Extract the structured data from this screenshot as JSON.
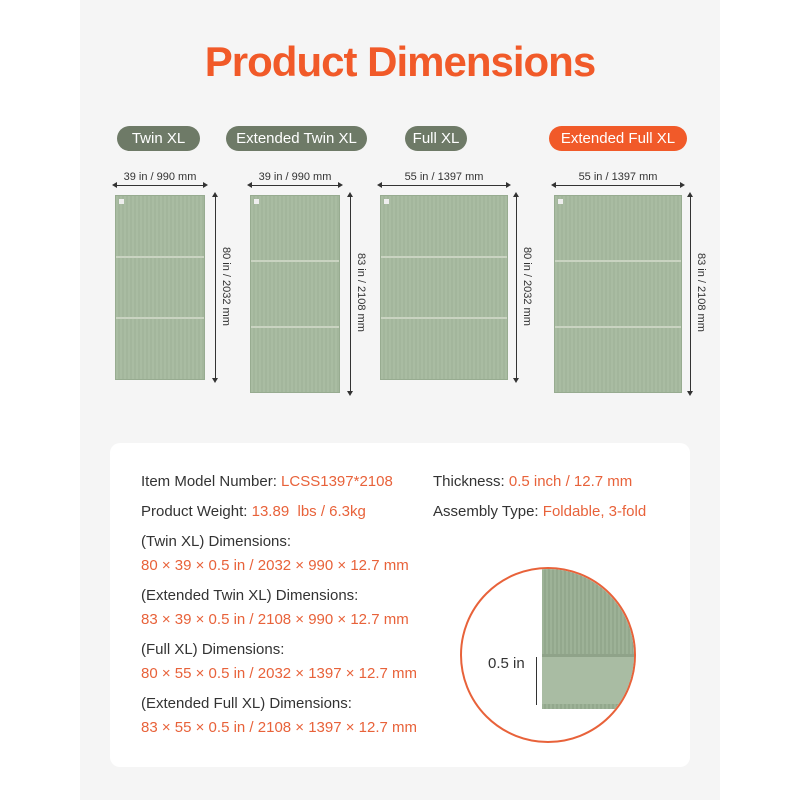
{
  "title": "Product Dimensions",
  "sizes": [
    {
      "label": "Twin XL",
      "width": "39 in / 990 mm",
      "length": "80 in / 2032 mm",
      "highlight": false
    },
    {
      "label": "Extended Twin XL",
      "width": "39 in / 990 mm",
      "length": "83 in / 2108 mm",
      "highlight": false
    },
    {
      "label": "Full XL",
      "width": "55 in / 1397 mm",
      "length": "80 in / 2032 mm",
      "highlight": false
    },
    {
      "label": "Extended Full XL",
      "width": "55 in / 1397 mm",
      "length": "83 in / 2108 mm",
      "highlight": true
    }
  ],
  "specs": {
    "model_label": "Item Model Number: ",
    "model": "LCSS1397*2108",
    "weight_label": "Product Weight: ",
    "weight": "13.89  lbs / 6.3kg",
    "thickness_label": "Thickness: ",
    "thickness": "0.5 inch / 12.7 mm",
    "assembly_label": "Assembly Type: ",
    "assembly": "Foldable, 3-fold",
    "dims": [
      {
        "label": "(Twin XL) Dimensions:",
        "value": "80 × 39 × 0.5 in / 2032 × 990 × 12.7 mm"
      },
      {
        "label": "(Extended Twin XL) Dimensions:",
        "value": "83 × 39 × 0.5 in / 2108 × 990 × 12.7 mm"
      },
      {
        "label": "(Full XL) Dimensions:",
        "value": "80 × 55 × 0.5 in / 2032 × 1397 × 12.7 mm"
      },
      {
        "label": "(Extended Full XL) Dimensions:",
        "value": "83 × 55 × 0.5 in / 2108 × 1397 × 12.7 mm"
      }
    ]
  },
  "detail": {
    "thickness": "0.5 in"
  },
  "colors": {
    "accent": "#f15a29",
    "pill": "#6e7a67",
    "mat": "#a7bba0"
  }
}
